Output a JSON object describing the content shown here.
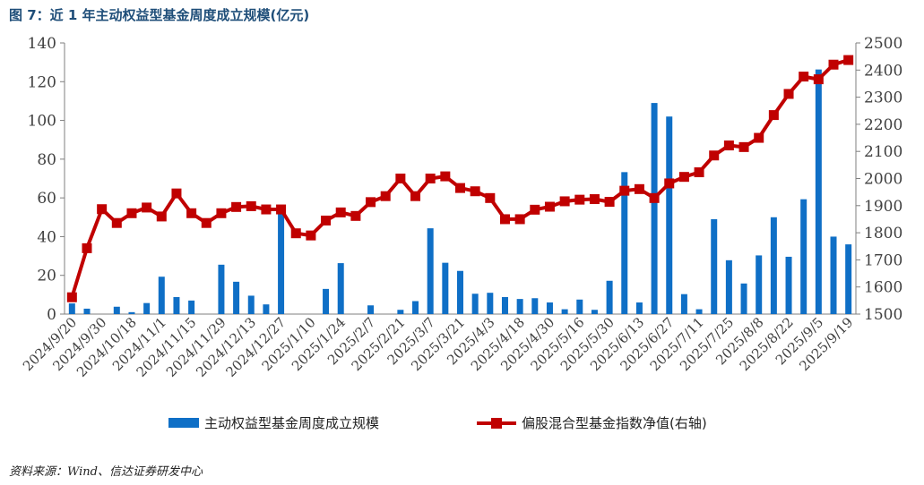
{
  "figure": {
    "title": "图 7：近 1 年主动权益型基金周度成立规模(亿元)",
    "source": "资料来源：Wind、信达证券研发中心"
  },
  "colors": {
    "bar": "#0f6fc6",
    "line": "#c00000",
    "axis": "#7f7f7f",
    "text": "#404040"
  },
  "chart_data": {
    "type": "bar+line",
    "x_tick_labels": [
      "2024/9/20",
      "2024/9/30",
      "2024/10/18",
      "2024/11/1",
      "2024/11/15",
      "2024/11/29",
      "2024/12/13",
      "2024/12/27",
      "2025/1/10",
      "2025/1/24",
      "2025/2/7",
      "2025/2/21",
      "2025/3/7",
      "2025/3/21",
      "2025/4/3",
      "2025/4/18",
      "2025/4/30",
      "2025/5/16",
      "2025/5/30",
      "2025/6/13",
      "2025/6/27",
      "2025/7/11",
      "2025/7/25",
      "2025/8/8",
      "2025/8/22",
      "2025/9/5",
      "2025/9/19"
    ],
    "y_left": {
      "min": 0,
      "max": 140,
      "ticks": [
        0,
        20,
        40,
        60,
        80,
        100,
        120,
        140
      ]
    },
    "y_right": {
      "min": 1500,
      "max": 2500,
      "ticks": [
        1500,
        1600,
        1700,
        1800,
        1900,
        2000,
        2100,
        2200,
        2300,
        2400,
        2500
      ]
    },
    "series": [
      {
        "name": "主动权益型基金周度成立规模",
        "type": "bar",
        "axis": "left",
        "values": [
          5.5,
          2.8,
          0,
          3.8,
          1,
          5.7,
          19.3,
          8.8,
          7,
          0,
          25.5,
          16.7,
          9.5,
          5,
          53.8,
          0,
          0,
          13,
          26.3,
          0,
          4.5,
          0,
          2.2,
          6.7,
          44.3,
          26.5,
          22.3,
          10.5,
          11,
          8.8,
          7.8,
          8.2,
          6,
          2.5,
          7.5,
          2.2,
          17.2,
          73.3,
          6,
          109,
          102,
          10.3,
          2.5,
          49,
          27.8,
          15.8,
          30.3,
          50,
          29.6,
          59.3,
          126.3,
          40,
          36
        ]
      },
      {
        "name": "偏股混合型基金指数净值(右轴)",
        "type": "line",
        "axis": "right",
        "values": [
          1562,
          1743,
          1887,
          1836,
          1872,
          1893,
          1860,
          1945,
          1872,
          1836,
          1872,
          1895,
          1898,
          1886,
          1886,
          1798,
          1790,
          1845,
          1875,
          1862,
          1913,
          1935,
          2000,
          1935,
          2000,
          2008,
          1965,
          1953,
          1928,
          1850,
          1850,
          1885,
          1896,
          1916,
          1922,
          1924,
          1914,
          1955,
          1961,
          1928,
          1982,
          2006,
          2023,
          2085,
          2122,
          2116,
          2150,
          2234,
          2312,
          2376,
          2366,
          2420,
          2437
        ]
      }
    ]
  },
  "legend": {
    "bar_label": "主动权益型基金周度成立规模",
    "line_label": "偏股混合型基金指数净值(右轴)"
  }
}
